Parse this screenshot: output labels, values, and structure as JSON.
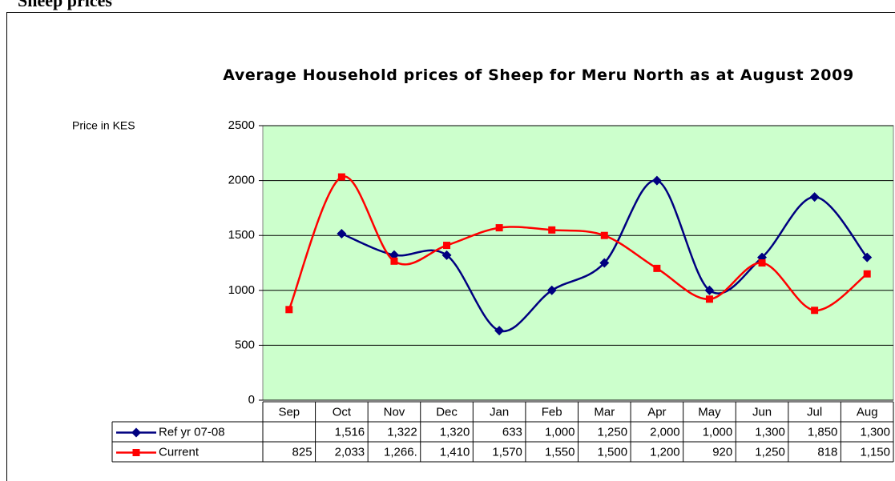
{
  "heading": "Sheep prices",
  "chart_data": {
    "type": "line",
    "title": "Average Household prices of Sheep for Meru North as at August 2009",
    "y_label": "Price in KES",
    "categories": [
      "Sep",
      "Oct",
      "Nov",
      "Dec",
      "Jan",
      "Feb",
      "Mar",
      "Apr",
      "May",
      "Jun",
      "Jul",
      "Aug"
    ],
    "series": [
      {
        "name": "Ref yr 07-08",
        "color": "#000080",
        "marker": "diamond",
        "values": [
          null,
          1516,
          1322,
          1320,
          633,
          1000,
          1250,
          2000,
          1000,
          1300,
          1850,
          1300
        ],
        "value_labels": [
          null,
          "1,516",
          "1,322",
          "1,320",
          "633",
          "1,000",
          "1,250",
          "2,000",
          "1,000",
          "1,300",
          "1,850",
          "1,300"
        ]
      },
      {
        "name": "Current",
        "color": "#ff0000",
        "marker": "square",
        "values": [
          825,
          2033,
          1266,
          1410,
          1570,
          1550,
          1500,
          1200,
          920,
          1250,
          818,
          1150
        ],
        "value_labels": [
          "825",
          "2,033",
          "1,266.",
          "1,410",
          "1,570",
          "1,550",
          "1,500",
          "1,200",
          "920",
          "1,250",
          "818",
          "1,150"
        ]
      }
    ],
    "ylim": [
      0,
      2500
    ],
    "yticks": [
      0,
      500,
      1000,
      1500,
      2000,
      2500
    ],
    "grid": true,
    "smooth": true,
    "plot_color": "#ccffcc"
  }
}
